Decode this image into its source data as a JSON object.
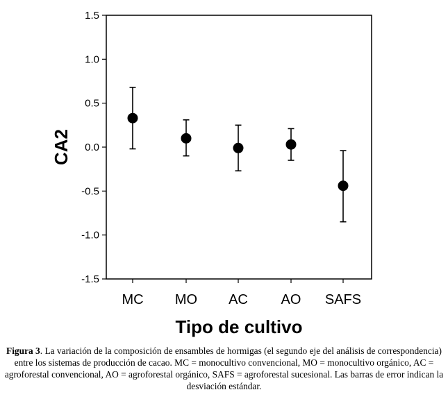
{
  "chart_data": {
    "type": "scatter",
    "categories": [
      "MC",
      "MO",
      "AC",
      "AO",
      "SAFS"
    ],
    "series": [
      {
        "values": [
          0.33,
          0.1,
          -0.01,
          0.03,
          -0.44
        ],
        "error_upper": [
          0.68,
          0.31,
          0.25,
          0.21,
          -0.04
        ],
        "error_lower": [
          -0.02,
          -0.1,
          -0.27,
          -0.15,
          -0.85
        ]
      }
    ],
    "ylim": [
      -1.5,
      1.5
    ],
    "yticks": [
      "-1.5",
      "-1.0",
      "-0.5",
      "0.0",
      "0.5",
      "1.0",
      "1.5"
    ],
    "ytick_values": [
      -1.5,
      -1.0,
      -0.5,
      0.0,
      0.5,
      1.0,
      1.5
    ],
    "ylabel": "CA2",
    "xlabel": "Tipo de cultivo",
    "grid": false,
    "marker_color": "#000000"
  },
  "caption": {
    "label": "Figura 3",
    "text": ". La variación de la composición de ensambles de hormigas (el segundo eje del análisis de correspondencia) entre los sistemas de producción de cacao. MC = monocultivo convencional, MO = monocultivo orgánico, AC = agroforestal convencional, AO = agroforestal orgánico, SAFS = agroforestal sucesional. Las barras de error indican la desviación estándar."
  }
}
